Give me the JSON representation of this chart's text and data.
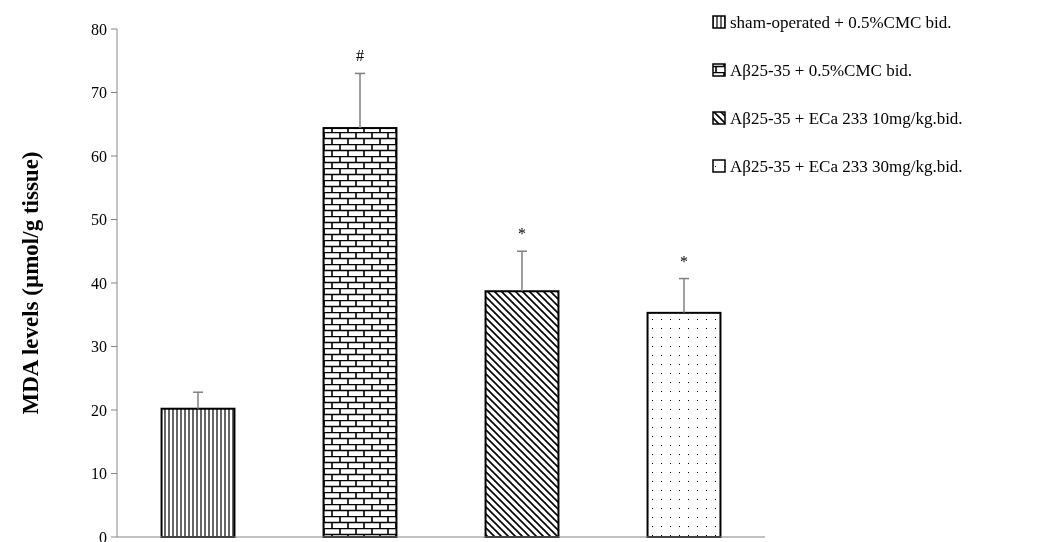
{
  "chart_data": {
    "type": "bar",
    "ylabel": "MDA levels (µmol/g tissue)",
    "categories": [
      null,
      null,
      null,
      null
    ],
    "ylim": [
      0,
      80
    ],
    "yticks": [
      0,
      10,
      20,
      30,
      40,
      50,
      60,
      70,
      80
    ],
    "grid": false,
    "legend": "top right",
    "series": [
      {
        "name": "sham-operated + 0.5%CMC bid.",
        "color": "#000000",
        "values": [
          20.2,
          null,
          null,
          null
        ],
        "errors": [
          2.6,
          null,
          null,
          null
        ]
      },
      {
        "name": "Aβ25-35 + 0.5%CMC bid.",
        "color": "#000000",
        "values": [
          null,
          64.4,
          null,
          null
        ],
        "errors": [
          null,
          8.6,
          null,
          null
        ]
      },
      {
        "name": "Aβ25-35 + ECa 233 10mg/kg.bid.",
        "color": "#000000",
        "values": [
          null,
          null,
          38.7,
          null
        ],
        "errors": [
          null,
          null,
          6.3,
          null
        ]
      },
      {
        "name": "Aβ25-35 + ECa 233 30mg/kg.bid.",
        "color": "#000000",
        "values": [
          null,
          null,
          null,
          35.3
        ],
        "errors": [
          null,
          null,
          null,
          5.4
        ]
      }
    ],
    "annotations": [
      "#",
      "*",
      "*"
    ]
  }
}
